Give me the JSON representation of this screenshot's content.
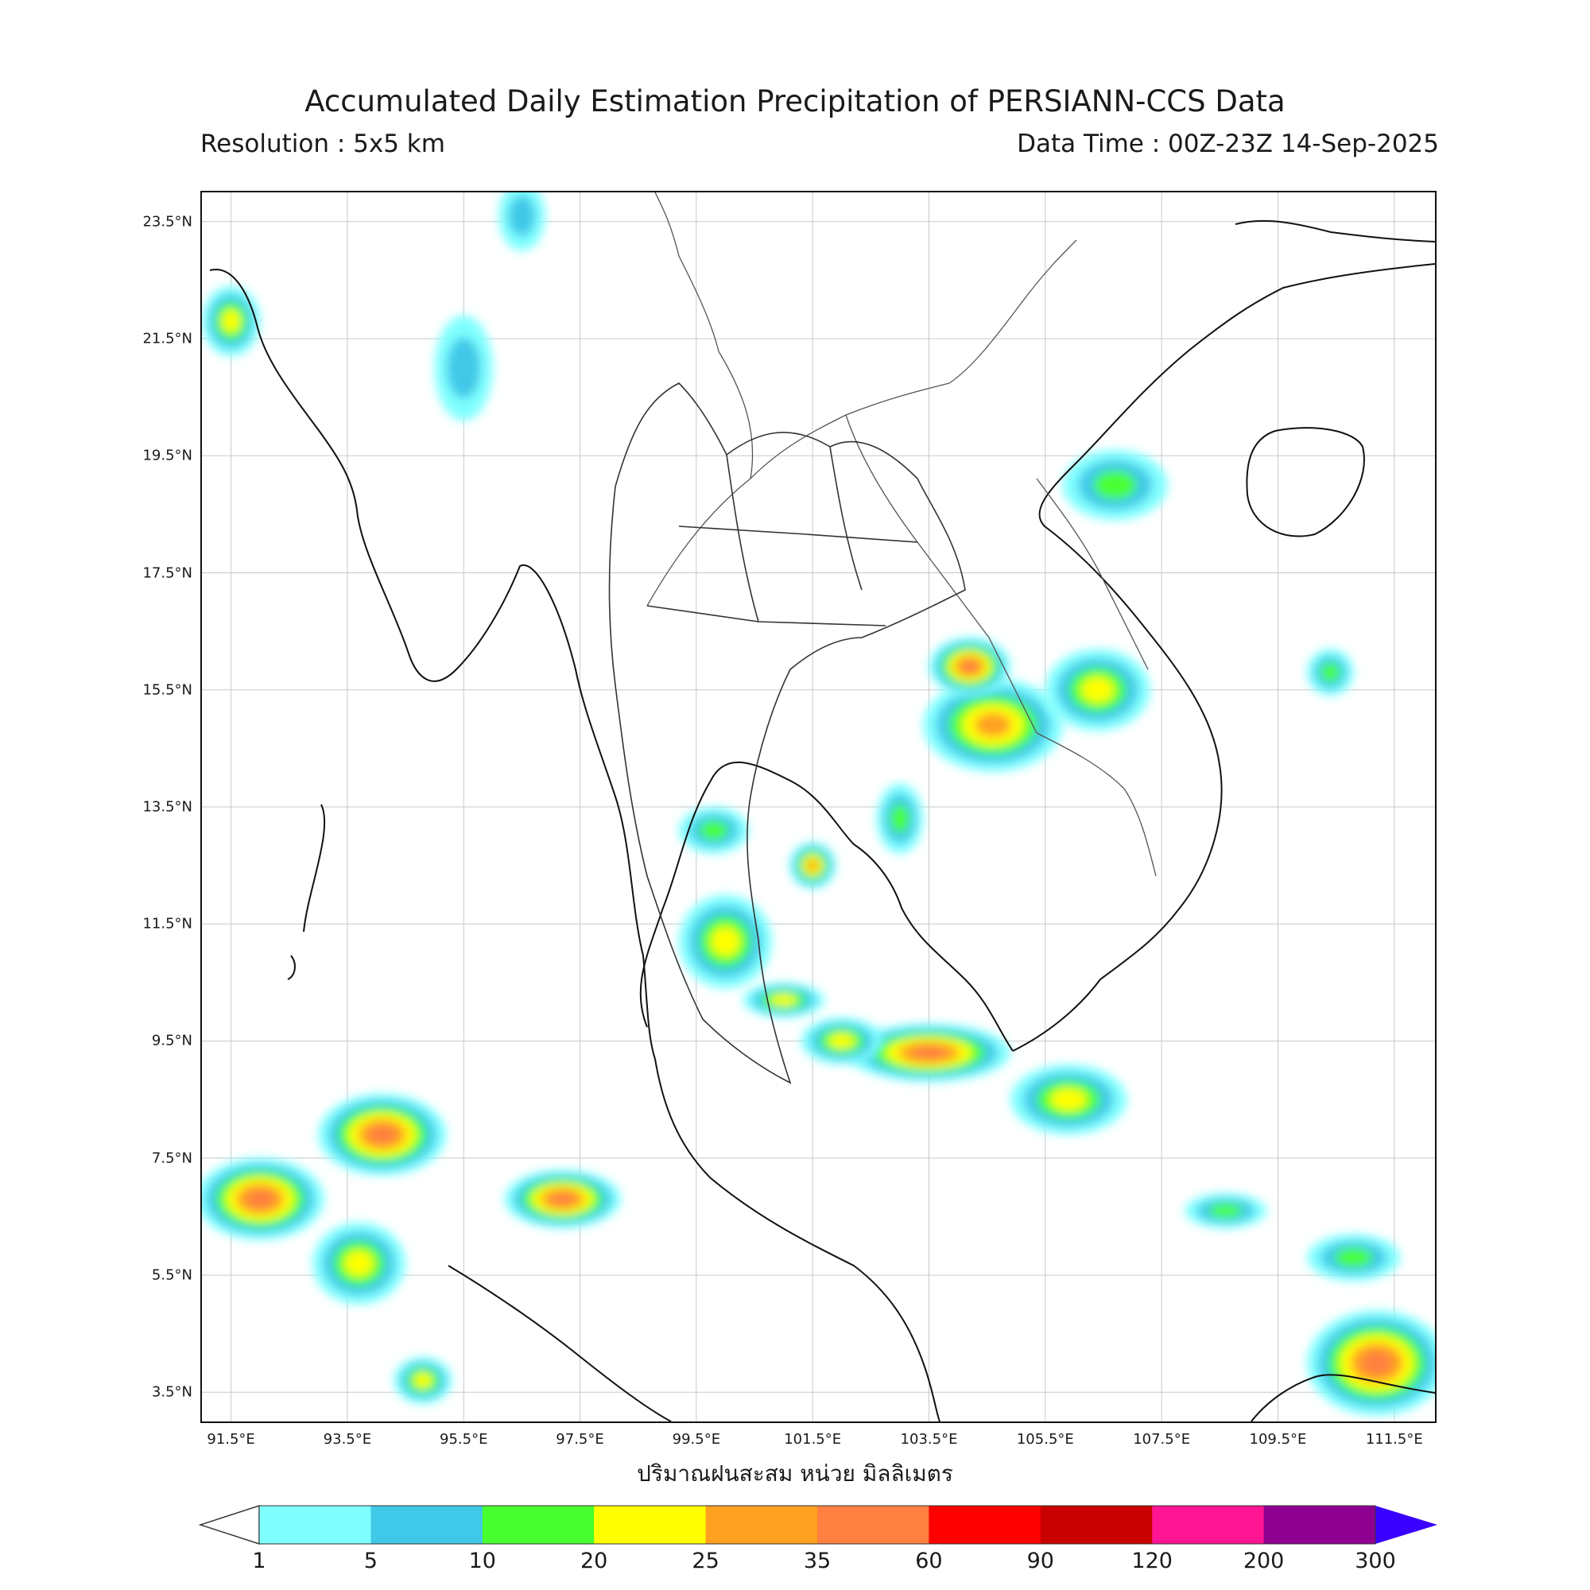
{
  "title": "Accumulated Daily Estimation Precipitation of PERSIANN-CCS Data",
  "resolution_label": "Resolution : 5x5 km",
  "data_time_label": "Data Time : 00Z-23Z 14-Sep-2025",
  "map": {
    "lon_range": [
      91.0,
      112.2
    ],
    "lat_range": [
      3.0,
      24.0
    ],
    "lon_ticks": [
      "91.5°E",
      "93.5°E",
      "95.5°E",
      "97.5°E",
      "99.5°E",
      "101.5°E",
      "103.5°E",
      "105.5°E",
      "107.5°E",
      "109.5°E",
      "111.5°E"
    ],
    "lat_ticks": [
      "23.5°N",
      "21.5°N",
      "19.5°N",
      "17.5°N",
      "15.5°N",
      "13.5°N",
      "11.5°N",
      "9.5°N",
      "7.5°N",
      "5.5°N",
      "3.5°N"
    ],
    "grid": true,
    "rain_areas": [
      {
        "lon": 104.6,
        "lat": 14.9,
        "rx": 1.2,
        "ry": 0.8,
        "peak_mm": 25
      },
      {
        "lon": 104.2,
        "lat": 15.9,
        "rx": 0.7,
        "ry": 0.5,
        "peak_mm": 35
      },
      {
        "lon": 106.4,
        "lat": 15.5,
        "rx": 0.9,
        "ry": 0.7,
        "peak_mm": 20
      },
      {
        "lon": 100.0,
        "lat": 11.2,
        "rx": 0.8,
        "ry": 0.8,
        "peak_mm": 20
      },
      {
        "lon": 99.8,
        "lat": 13.1,
        "rx": 0.6,
        "ry": 0.4,
        "peak_mm": 10
      },
      {
        "lon": 103.5,
        "lat": 9.3,
        "rx": 1.4,
        "ry": 0.5,
        "peak_mm": 35
      },
      {
        "lon": 102.0,
        "lat": 9.5,
        "rx": 0.7,
        "ry": 0.4,
        "peak_mm": 20
      },
      {
        "lon": 105.9,
        "lat": 8.5,
        "rx": 1.0,
        "ry": 0.6,
        "peak_mm": 20
      },
      {
        "lon": 94.1,
        "lat": 7.9,
        "rx": 1.1,
        "ry": 0.7,
        "peak_mm": 35
      },
      {
        "lon": 92.0,
        "lat": 6.8,
        "rx": 1.1,
        "ry": 0.7,
        "peak_mm": 35
      },
      {
        "lon": 93.7,
        "lat": 5.7,
        "rx": 0.8,
        "ry": 0.7,
        "peak_mm": 20
      },
      {
        "lon": 97.2,
        "lat": 6.8,
        "rx": 1.0,
        "ry": 0.5,
        "peak_mm": 35
      },
      {
        "lon": 94.8,
        "lat": 3.7,
        "rx": 0.5,
        "ry": 0.4,
        "peak_mm": 20
      },
      {
        "lon": 111.2,
        "lat": 4.0,
        "rx": 1.2,
        "ry": 0.9,
        "peak_mm": 35
      },
      {
        "lon": 110.8,
        "lat": 5.8,
        "rx": 0.8,
        "ry": 0.4,
        "peak_mm": 10
      },
      {
        "lon": 108.6,
        "lat": 6.6,
        "rx": 0.7,
        "ry": 0.3,
        "peak_mm": 10
      },
      {
        "lon": 103.0,
        "lat": 13.3,
        "rx": 0.4,
        "ry": 0.6,
        "peak_mm": 10
      },
      {
        "lon": 101.5,
        "lat": 12.5,
        "rx": 0.4,
        "ry": 0.4,
        "peak_mm": 25
      },
      {
        "lon": 106.7,
        "lat": 19.0,
        "rx": 0.9,
        "ry": 0.6,
        "peak_mm": 10
      },
      {
        "lon": 91.5,
        "lat": 21.8,
        "rx": 0.5,
        "ry": 0.6,
        "peak_mm": 20
      },
      {
        "lon": 96.5,
        "lat": 23.6,
        "rx": 0.4,
        "ry": 0.6,
        "peak_mm": 5
      },
      {
        "lon": 95.5,
        "lat": 21.0,
        "rx": 0.5,
        "ry": 0.9,
        "peak_mm": 5
      },
      {
        "lon": 101.0,
        "lat": 10.2,
        "rx": 0.7,
        "ry": 0.3,
        "peak_mm": 20
      },
      {
        "lon": 110.4,
        "lat": 15.8,
        "rx": 0.4,
        "ry": 0.4,
        "peak_mm": 10
      }
    ]
  },
  "colorbar": {
    "title": "ปริมาณฝนสะสม หน่วย มิลลิเมตร",
    "levels": [
      "1",
      "5",
      "10",
      "20",
      "25",
      "35",
      "60",
      "90",
      "120",
      "200",
      "300"
    ],
    "colors": [
      "#80ffff",
      "#40c8e8",
      "#48ff30",
      "#ffff00",
      "#ffa020",
      "#ff8040",
      "#ff0000",
      "#c80000",
      "#ff1493",
      "#900090"
    ],
    "under_color": "#ffffff",
    "over_color": "#3a00ff"
  }
}
